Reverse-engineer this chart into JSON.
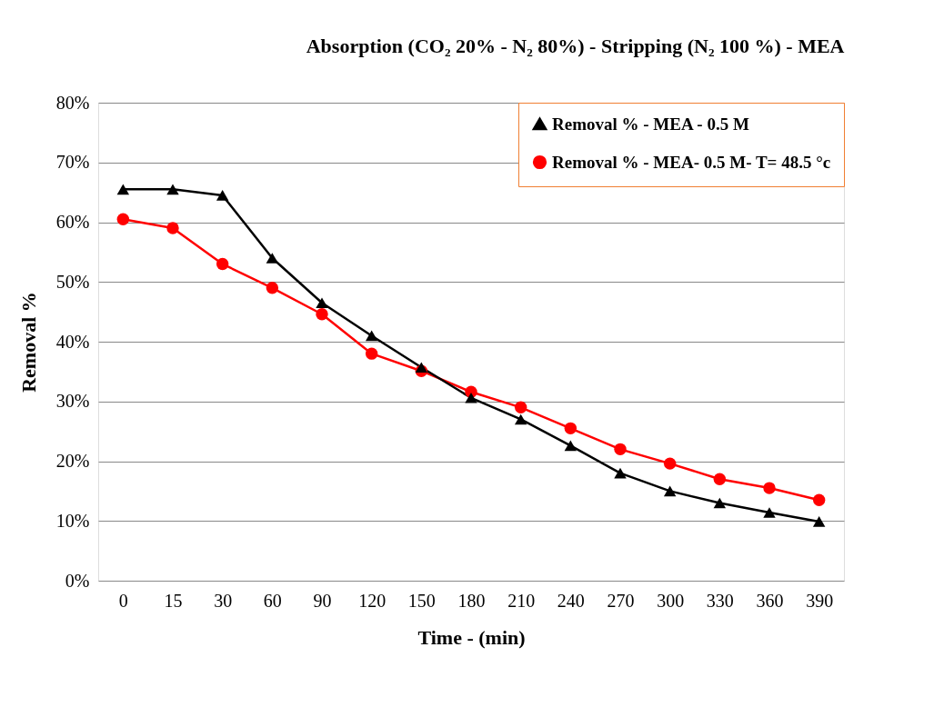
{
  "chart_data": {
    "type": "line",
    "title": "Absorption (CO₂ 20% - N₂ 80%) - Stripping  (N₂ 100 %) - MEA",
    "xlabel": "Time - (min)",
    "ylabel": "Removal %",
    "categories": [
      "0",
      "15",
      "30",
      "60",
      "90",
      "120",
      "150",
      "180",
      "210",
      "240",
      "270",
      "300",
      "330",
      "360",
      "390"
    ],
    "series": [
      {
        "name": "Removal % - MEA  - 0.5 M",
        "color": "#000000",
        "marker": "triangle",
        "values": [
          65.5,
          65.5,
          64.5,
          54,
          46.5,
          41,
          35.7,
          30.6,
          27,
          22.6,
          18,
          15,
          13,
          11.4,
          9.9
        ]
      },
      {
        "name": "Removal % - MEA- 0.5 M- T= 48.5 °c",
        "color": "#ff0000",
        "marker": "circle",
        "values": [
          60.5,
          59,
          53,
          49,
          44.6,
          38,
          35.1,
          31.6,
          29,
          25.5,
          22,
          19.6,
          17,
          15.5,
          13.5
        ]
      }
    ],
    "ylim": [
      0,
      80
    ],
    "yticks": [
      {
        "value": 0,
        "label": "0%"
      },
      {
        "value": 10,
        "label": "10%"
      },
      {
        "value": 20,
        "label": "20%"
      },
      {
        "value": 30,
        "label": "30%"
      },
      {
        "value": 40,
        "label": "40%"
      },
      {
        "value": 50,
        "label": "50%"
      },
      {
        "value": 60,
        "label": "60%"
      },
      {
        "value": 70,
        "label": "70%"
      },
      {
        "value": 80,
        "label": "80%"
      }
    ],
    "grid": "y",
    "legend": "top right",
    "line_style": "solid"
  }
}
